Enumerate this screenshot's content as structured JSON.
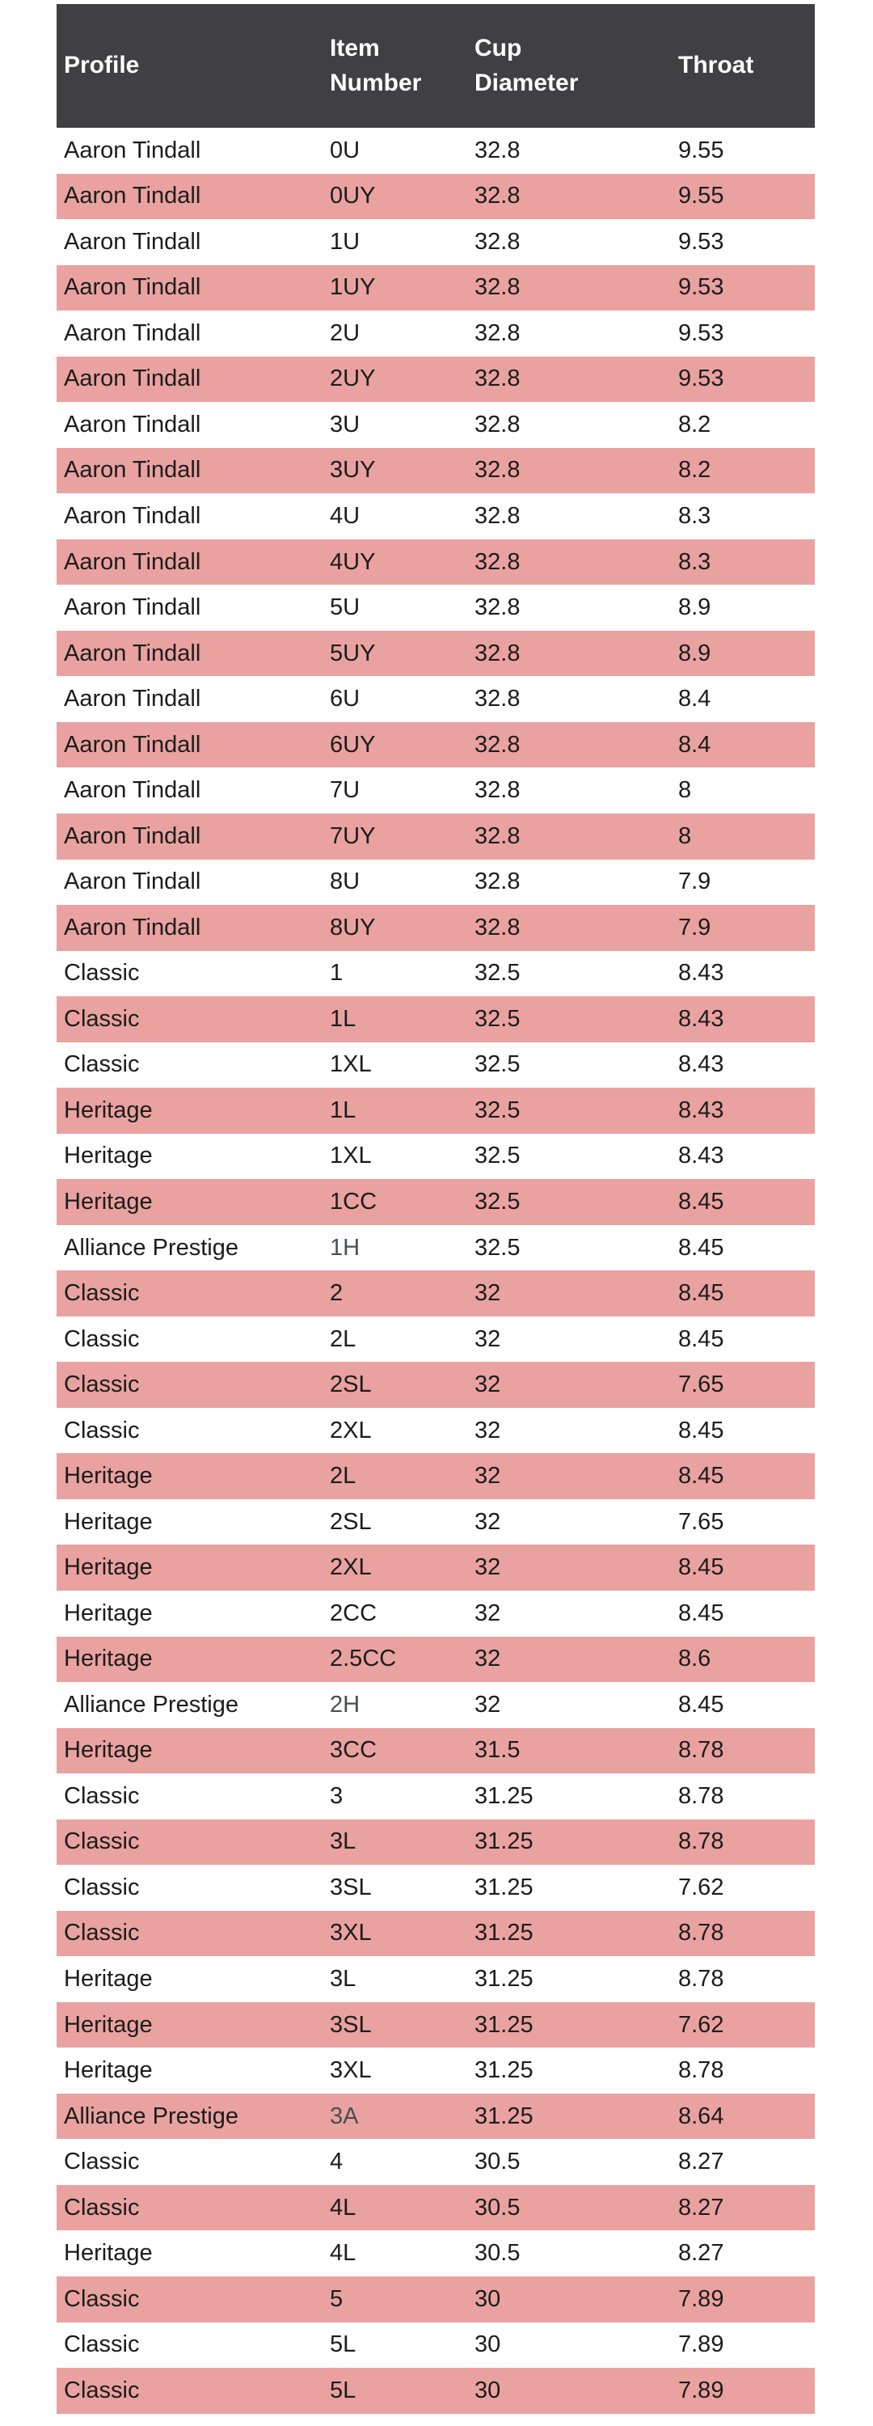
{
  "colors": {
    "header_bg": "#403f41",
    "header_text": "#ffffff",
    "row_bg": "#ffffff",
    "row_alt_bg": "#e9a2a0",
    "text": "#1c1c1c",
    "muted_text": "#4b4e52"
  },
  "table": {
    "columns": [
      {
        "key": "profile",
        "label": "Profile"
      },
      {
        "key": "item",
        "label": "Item Number"
      },
      {
        "key": "cup",
        "label": "Cup Diameter"
      },
      {
        "key": "throat",
        "label": "Throat"
      }
    ],
    "rows": [
      {
        "profile": "Aaron Tindall",
        "item": "0U",
        "cup": "32.8",
        "throat": "9.55"
      },
      {
        "profile": "Aaron Tindall",
        "item": "0UY",
        "cup": "32.8",
        "throat": "9.55"
      },
      {
        "profile": "Aaron Tindall",
        "item": "1U",
        "cup": "32.8",
        "throat": "9.53"
      },
      {
        "profile": "Aaron Tindall",
        "item": "1UY",
        "cup": "32.8",
        "throat": "9.53"
      },
      {
        "profile": "Aaron Tindall",
        "item": "2U",
        "cup": "32.8",
        "throat": "9.53"
      },
      {
        "profile": "Aaron Tindall",
        "item": "2UY",
        "cup": "32.8",
        "throat": "9.53"
      },
      {
        "profile": "Aaron Tindall",
        "item": "3U",
        "cup": "32.8",
        "throat": "8.2"
      },
      {
        "profile": "Aaron Tindall",
        "item": "3UY",
        "cup": "32.8",
        "throat": "8.2"
      },
      {
        "profile": "Aaron Tindall",
        "item": "4U",
        "cup": "32.8",
        "throat": "8.3"
      },
      {
        "profile": "Aaron Tindall",
        "item": "4UY",
        "cup": "32.8",
        "throat": "8.3"
      },
      {
        "profile": "Aaron Tindall",
        "item": "5U",
        "cup": "32.8",
        "throat": "8.9"
      },
      {
        "profile": "Aaron Tindall",
        "item": "5UY",
        "cup": "32.8",
        "throat": "8.9"
      },
      {
        "profile": "Aaron Tindall",
        "item": "6U",
        "cup": "32.8",
        "throat": "8.4"
      },
      {
        "profile": "Aaron Tindall",
        "item": "6UY",
        "cup": "32.8",
        "throat": "8.4"
      },
      {
        "profile": "Aaron Tindall",
        "item": "7U",
        "cup": "32.8",
        "throat": "8"
      },
      {
        "profile": "Aaron Tindall",
        "item": "7UY",
        "cup": "32.8",
        "throat": "8"
      },
      {
        "profile": "Aaron Tindall",
        "item": "8U",
        "cup": "32.8",
        "throat": "7.9"
      },
      {
        "profile": "Aaron Tindall",
        "item": "8UY",
        "cup": "32.8",
        "throat": "7.9"
      },
      {
        "profile": "Classic",
        "item": "1",
        "cup": "32.5",
        "throat": "8.43"
      },
      {
        "profile": "Classic",
        "item": "1L",
        "cup": "32.5",
        "throat": "8.43"
      },
      {
        "profile": "Classic",
        "item": "1XL",
        "cup": "32.5",
        "throat": "8.43"
      },
      {
        "profile": "Heritage",
        "item": "1L",
        "cup": "32.5",
        "throat": "8.43"
      },
      {
        "profile": "Heritage",
        "item": "1XL",
        "cup": "32.5",
        "throat": "8.43"
      },
      {
        "profile": "Heritage",
        "item": "1CC",
        "cup": "32.5",
        "throat": "8.45"
      },
      {
        "profile": "Alliance Prestige",
        "item": "1H",
        "cup": "32.5",
        "throat": "8.45",
        "item_muted": true
      },
      {
        "profile": "Classic",
        "item": "2",
        "cup": "32",
        "throat": "8.45"
      },
      {
        "profile": "Classic",
        "item": "2L",
        "cup": "32",
        "throat": "8.45"
      },
      {
        "profile": "Classic",
        "item": "2SL",
        "cup": "32",
        "throat": "7.65"
      },
      {
        "profile": "Classic",
        "item": "2XL",
        "cup": "32",
        "throat": "8.45"
      },
      {
        "profile": "Heritage",
        "item": "2L",
        "cup": "32",
        "throat": "8.45"
      },
      {
        "profile": "Heritage",
        "item": "2SL",
        "cup": "32",
        "throat": "7.65"
      },
      {
        "profile": "Heritage",
        "item": "2XL",
        "cup": "32",
        "throat": "8.45"
      },
      {
        "profile": "Heritage",
        "item": "2CC",
        "cup": "32",
        "throat": "8.45"
      },
      {
        "profile": "Heritage",
        "item": "2.5CC",
        "cup": "32",
        "throat": "8.6"
      },
      {
        "profile": "Alliance Prestige",
        "item": "2H",
        "cup": "32",
        "throat": "8.45",
        "item_muted": true
      },
      {
        "profile": "Heritage",
        "item": "3CC",
        "cup": "31.5",
        "throat": "8.78"
      },
      {
        "profile": "Classic",
        "item": "3",
        "cup": "31.25",
        "throat": "8.78"
      },
      {
        "profile": "Classic",
        "item": "3L",
        "cup": "31.25",
        "throat": "8.78"
      },
      {
        "profile": "Classic",
        "item": "3SL",
        "cup": "31.25",
        "throat": "7.62"
      },
      {
        "profile": "Classic",
        "item": "3XL",
        "cup": "31.25",
        "throat": "8.78"
      },
      {
        "profile": "Heritage",
        "item": "3L",
        "cup": "31.25",
        "throat": "8.78"
      },
      {
        "profile": "Heritage",
        "item": "3SL",
        "cup": "31.25",
        "throat": "7.62"
      },
      {
        "profile": "Heritage",
        "item": "3XL",
        "cup": "31.25",
        "throat": "8.78"
      },
      {
        "profile": "Alliance Prestige",
        "item": "3A",
        "cup": "31.25",
        "throat": "8.64",
        "item_muted": true
      },
      {
        "profile": "Classic",
        "item": "4",
        "cup": "30.5",
        "throat": "8.27"
      },
      {
        "profile": "Classic",
        "item": "4L",
        "cup": "30.5",
        "throat": "8.27"
      },
      {
        "profile": "Heritage",
        "item": "4L",
        "cup": "30.5",
        "throat": "8.27"
      },
      {
        "profile": "Classic",
        "item": "5",
        "cup": "30",
        "throat": "7.89"
      },
      {
        "profile": "Classic",
        "item": "5L",
        "cup": "30",
        "throat": "7.89"
      },
      {
        "profile": "Classic",
        "item": "5L",
        "cup": "30",
        "throat": "7.89"
      }
    ]
  }
}
